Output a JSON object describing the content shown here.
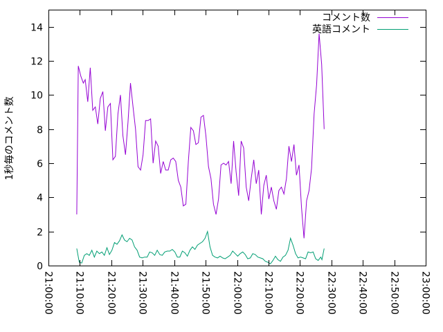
{
  "chart_data": {
    "type": "line",
    "title": "",
    "xlabel": "",
    "ylabel": "1秒毎のコメント数",
    "xlim_minutes": [
      0,
      120
    ],
    "ylim": [
      0,
      15
    ],
    "x_ticks": [
      "21:00:00",
      "21:10:00",
      "21:20:00",
      "21:30:00",
      "21:40:00",
      "21:50:00",
      "22:00:00",
      "22:10:00",
      "22:20:00",
      "22:30:00",
      "22:40:00",
      "22:50:00",
      "23:00:00"
    ],
    "y_ticks": [
      0,
      2,
      4,
      6,
      8,
      10,
      12,
      14
    ],
    "grid": false,
    "legend": "top-right",
    "series": [
      {
        "name": "コメント数",
        "color": "#9400d3",
        "points": [
          [
            9.0,
            3.0
          ],
          [
            9.5,
            11.7
          ],
          [
            10.3,
            11.1
          ],
          [
            11.1,
            10.7
          ],
          [
            11.7,
            10.9
          ],
          [
            12.5,
            9.6
          ],
          [
            13.3,
            11.6
          ],
          [
            14.1,
            9.1
          ],
          [
            14.9,
            9.3
          ],
          [
            15.7,
            8.3
          ],
          [
            16.5,
            9.8
          ],
          [
            17.3,
            10.2
          ],
          [
            18.1,
            7.9
          ],
          [
            18.9,
            9.3
          ],
          [
            19.7,
            9.5
          ],
          [
            20.5,
            6.2
          ],
          [
            21.3,
            6.4
          ],
          [
            22.1,
            8.9
          ],
          [
            22.9,
            10.0
          ],
          [
            23.7,
            7.6
          ],
          [
            24.5,
            6.5
          ],
          [
            25.3,
            8.4
          ],
          [
            26.1,
            10.7
          ],
          [
            26.9,
            9.3
          ],
          [
            27.7,
            8.0
          ],
          [
            28.5,
            5.8
          ],
          [
            29.3,
            5.6
          ],
          [
            30.1,
            6.5
          ],
          [
            30.9,
            8.5
          ],
          [
            31.7,
            8.5
          ],
          [
            32.5,
            8.6
          ],
          [
            33.3,
            6.0
          ],
          [
            34.1,
            7.3
          ],
          [
            34.9,
            7.0
          ],
          [
            35.7,
            5.4
          ],
          [
            36.5,
            6.1
          ],
          [
            37.3,
            5.6
          ],
          [
            38.1,
            5.6
          ],
          [
            38.9,
            6.2
          ],
          [
            39.7,
            6.3
          ],
          [
            40.5,
            6.1
          ],
          [
            41.3,
            5.0
          ],
          [
            42.1,
            4.6
          ],
          [
            42.9,
            3.5
          ],
          [
            43.7,
            3.6
          ],
          [
            44.5,
            6.1
          ],
          [
            45.3,
            8.1
          ],
          [
            46.1,
            7.9
          ],
          [
            46.9,
            7.1
          ],
          [
            47.7,
            7.2
          ],
          [
            48.5,
            8.7
          ],
          [
            49.3,
            8.8
          ],
          [
            50.1,
            7.6
          ],
          [
            50.9,
            5.8
          ],
          [
            51.7,
            5.1
          ],
          [
            52.5,
            3.6
          ],
          [
            53.3,
            3.0
          ],
          [
            54.1,
            3.9
          ],
          [
            54.9,
            5.9
          ],
          [
            55.7,
            6.0
          ],
          [
            56.5,
            5.9
          ],
          [
            57.3,
            6.1
          ],
          [
            58.1,
            4.8
          ],
          [
            58.9,
            7.3
          ],
          [
            59.7,
            5.5
          ],
          [
            60.5,
            4.1
          ],
          [
            61.3,
            7.3
          ],
          [
            62.1,
            6.9
          ],
          [
            62.9,
            4.6
          ],
          [
            63.7,
            3.8
          ],
          [
            64.5,
            5.1
          ],
          [
            65.3,
            6.2
          ],
          [
            66.1,
            4.8
          ],
          [
            66.9,
            5.6
          ],
          [
            67.7,
            3.0
          ],
          [
            68.5,
            4.7
          ],
          [
            69.3,
            5.3
          ],
          [
            70.1,
            3.9
          ],
          [
            70.9,
            4.6
          ],
          [
            71.7,
            3.8
          ],
          [
            72.5,
            3.3
          ],
          [
            73.3,
            4.4
          ],
          [
            74.1,
            4.6
          ],
          [
            74.9,
            4.2
          ],
          [
            75.7,
            5.1
          ],
          [
            76.5,
            7.0
          ],
          [
            77.3,
            6.1
          ],
          [
            78.1,
            7.1
          ],
          [
            78.9,
            5.3
          ],
          [
            79.7,
            5.9
          ],
          [
            80.5,
            3.4
          ],
          [
            81.3,
            1.6
          ],
          [
            82.1,
            3.8
          ],
          [
            82.9,
            4.4
          ],
          [
            83.7,
            5.7
          ],
          [
            84.5,
            8.9
          ],
          [
            85.3,
            10.6
          ],
          [
            86.1,
            13.6
          ],
          [
            86.9,
            11.8
          ],
          [
            87.7,
            8.0
          ]
        ]
      },
      {
        "name": "英語コメント",
        "color": "#009e73",
        "points": [
          [
            9.0,
            1.0
          ],
          [
            9.8,
            0.2
          ],
          [
            10.6,
            0.15
          ],
          [
            11.4,
            0.6
          ],
          [
            12.2,
            0.7
          ],
          [
            13.0,
            0.6
          ],
          [
            13.8,
            0.9
          ],
          [
            14.6,
            0.5
          ],
          [
            15.4,
            0.85
          ],
          [
            16.2,
            0.7
          ],
          [
            17.0,
            0.8
          ],
          [
            17.8,
            0.6
          ],
          [
            18.6,
            1.05
          ],
          [
            19.4,
            0.65
          ],
          [
            20.2,
            0.9
          ],
          [
            21.0,
            1.35
          ],
          [
            21.8,
            1.25
          ],
          [
            22.6,
            1.45
          ],
          [
            23.4,
            1.8
          ],
          [
            24.2,
            1.5
          ],
          [
            25.0,
            1.4
          ],
          [
            25.8,
            1.6
          ],
          [
            26.6,
            1.5
          ],
          [
            27.4,
            1.1
          ],
          [
            28.2,
            0.9
          ],
          [
            29.0,
            0.5
          ],
          [
            29.8,
            0.45
          ],
          [
            30.6,
            0.5
          ],
          [
            31.4,
            0.5
          ],
          [
            32.2,
            0.8
          ],
          [
            33.0,
            0.75
          ],
          [
            33.8,
            0.6
          ],
          [
            34.6,
            0.9
          ],
          [
            35.4,
            0.65
          ],
          [
            36.2,
            0.6
          ],
          [
            37.0,
            0.8
          ],
          [
            37.8,
            0.85
          ],
          [
            38.6,
            0.85
          ],
          [
            39.4,
            0.95
          ],
          [
            40.2,
            0.8
          ],
          [
            41.0,
            0.5
          ],
          [
            41.8,
            0.5
          ],
          [
            42.6,
            0.85
          ],
          [
            43.4,
            0.75
          ],
          [
            44.2,
            0.55
          ],
          [
            45.0,
            0.9
          ],
          [
            45.8,
            1.1
          ],
          [
            46.6,
            0.95
          ],
          [
            47.4,
            1.2
          ],
          [
            48.2,
            1.3
          ],
          [
            49.0,
            1.4
          ],
          [
            49.8,
            1.6
          ],
          [
            50.6,
            2.0
          ],
          [
            51.4,
            1.1
          ],
          [
            52.2,
            0.6
          ],
          [
            53.0,
            0.5
          ],
          [
            53.8,
            0.45
          ],
          [
            54.6,
            0.55
          ],
          [
            55.4,
            0.45
          ],
          [
            56.2,
            0.4
          ],
          [
            57.0,
            0.5
          ],
          [
            57.8,
            0.6
          ],
          [
            58.6,
            0.85
          ],
          [
            59.4,
            0.7
          ],
          [
            60.2,
            0.55
          ],
          [
            61.0,
            0.7
          ],
          [
            61.8,
            0.8
          ],
          [
            62.6,
            0.65
          ],
          [
            63.4,
            0.4
          ],
          [
            64.2,
            0.45
          ],
          [
            65.0,
            0.7
          ],
          [
            65.8,
            0.65
          ],
          [
            66.6,
            0.5
          ],
          [
            67.4,
            0.45
          ],
          [
            68.2,
            0.4
          ],
          [
            69.0,
            0.25
          ],
          [
            69.8,
            0.2
          ],
          [
            70.6,
            0.1
          ],
          [
            71.4,
            0.3
          ],
          [
            72.2,
            0.55
          ],
          [
            73.0,
            0.35
          ],
          [
            73.8,
            0.25
          ],
          [
            74.6,
            0.5
          ],
          [
            75.4,
            0.6
          ],
          [
            76.2,
            0.9
          ],
          [
            77.0,
            1.6
          ],
          [
            77.8,
            1.2
          ],
          [
            78.6,
            0.7
          ],
          [
            79.4,
            0.45
          ],
          [
            80.2,
            0.5
          ],
          [
            81.0,
            0.45
          ],
          [
            81.8,
            0.4
          ],
          [
            82.6,
            0.8
          ],
          [
            83.4,
            0.75
          ],
          [
            84.2,
            0.8
          ],
          [
            85.0,
            0.4
          ],
          [
            85.8,
            0.3
          ],
          [
            86.6,
            0.5
          ],
          [
            87.0,
            0.35
          ],
          [
            87.7,
            1.0
          ]
        ]
      }
    ]
  }
}
